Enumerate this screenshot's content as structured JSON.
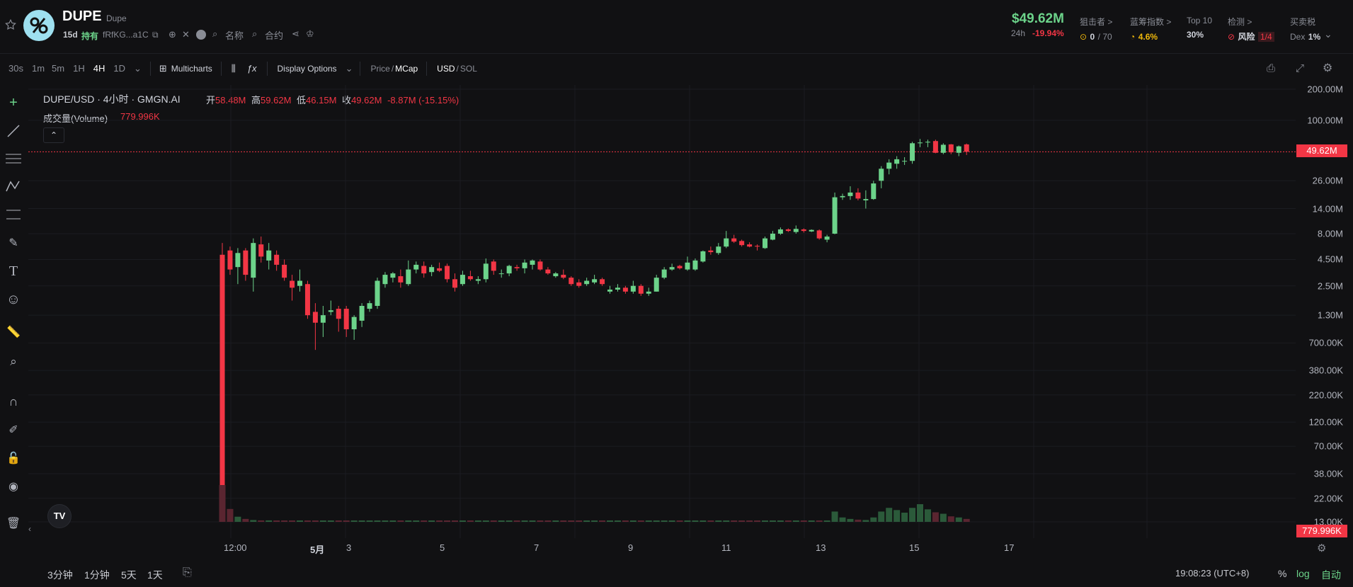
{
  "token": {
    "symbol": "DUPE",
    "name": "Dupe",
    "age": "15d",
    "holding_label": "持有",
    "address": "fRfKG...a1C",
    "search_name": "名称",
    "search_contract": "合约"
  },
  "price": {
    "value": "$49.62M",
    "change_label": "24h",
    "change": "-19.94%"
  },
  "stats": [
    {
      "label": "狙击者 >",
      "value": "0",
      "value2": "/ 70"
    },
    {
      "label": "蓝筹指数 >",
      "value": "4.6%"
    },
    {
      "label": "Top 10",
      "value": "30%"
    },
    {
      "label": "检测 >",
      "value": "风险",
      "value2": "1/4"
    },
    {
      "label": "买卖税",
      "value": "Dex",
      "value2": "1%"
    }
  ],
  "toolbar": {
    "intervals": [
      "30s",
      "1m",
      "5m",
      "1H",
      "4H",
      "1D"
    ],
    "active_interval": "4H",
    "multicharts": "Multicharts",
    "display_options": "Display Options",
    "price_label": "Price",
    "mcap_label": "MCap",
    "usd_label": "USD",
    "sol_label": "SOL"
  },
  "legend": {
    "title": "DUPE/USD · 4小时 · GMGN.AI",
    "open_label": "开",
    "open": "58.48M",
    "high_label": "高",
    "high": "59.62M",
    "low_label": "低",
    "low": "46.15M",
    "close_label": "收",
    "close": "49.62M",
    "change": "-8.87M (-15.15%)",
    "volume_label": "成交量(Volume)",
    "volume": "779.996K"
  },
  "yaxis": [
    "200.00M",
    "100.00M",
    "26.00M",
    "14.00M",
    "8.00M",
    "4.50M",
    "2.50M",
    "1.30M",
    "700.00K",
    "380.00K",
    "220.00K",
    "120.00K",
    "70.00K",
    "38.00K",
    "22.00K",
    "13.00K"
  ],
  "last_price_tag": "49.62M",
  "last_volume_tag": "779.996K",
  "xaxis": [
    "12:00",
    "5月",
    "3",
    "5",
    "7",
    "9",
    "11",
    "13",
    "15",
    "17"
  ],
  "bottom": {
    "ranges": [
      "3分钟",
      "1分钟",
      "5天",
      "1天"
    ],
    "time": "19:08:23 (UTC+8)",
    "pct": "%",
    "log": "log",
    "auto": "自动"
  },
  "colors": {
    "up": "#6cd38a",
    "down": "#f23645",
    "bg": "#111113"
  },
  "chart_data": {
    "type": "candlestick",
    "scale": "log",
    "ylim": [
      "13.00K",
      "200.00M"
    ],
    "candles": [
      {
        "o": 5.0,
        "h": 6.5,
        "l": 0.015,
        "c": 0.016
      },
      {
        "o": 5.5,
        "h": 6.0,
        "l": 3.2,
        "c": 3.6
      },
      {
        "o": 3.8,
        "h": 5.8,
        "l": 2.6,
        "c": 5.2
      },
      {
        "o": 5.5,
        "h": 5.8,
        "l": 2.8,
        "c": 3.2
      },
      {
        "o": 3.0,
        "h": 7.2,
        "l": 2.2,
        "c": 6.5
      },
      {
        "o": 6.3,
        "h": 7.5,
        "l": 4.2,
        "c": 4.8
      },
      {
        "o": 4.4,
        "h": 6.5,
        "l": 3.6,
        "c": 5.5
      },
      {
        "o": 5.0,
        "h": 5.5,
        "l": 3.5,
        "c": 4.0
      },
      {
        "o": 4.0,
        "h": 4.5,
        "l": 2.8,
        "c": 3.0
      },
      {
        "o": 2.8,
        "h": 3.2,
        "l": 1.8,
        "c": 2.4
      },
      {
        "o": 2.5,
        "h": 3.6,
        "l": 2.2,
        "c": 2.8
      },
      {
        "o": 2.6,
        "h": 2.8,
        "l": 1.2,
        "c": 1.3
      },
      {
        "o": 1.4,
        "h": 1.7,
        "l": 0.6,
        "c": 1.1
      },
      {
        "o": 1.1,
        "h": 1.6,
        "l": 0.8,
        "c": 1.3
      },
      {
        "o": 1.4,
        "h": 1.8,
        "l": 1.3,
        "c": 1.45
      },
      {
        "o": 1.5,
        "h": 1.6,
        "l": 0.9,
        "c": 1.2
      },
      {
        "o": 1.5,
        "h": 1.6,
        "l": 0.8,
        "c": 0.95
      },
      {
        "o": 0.95,
        "h": 1.3,
        "l": 0.75,
        "c": 1.25
      },
      {
        "o": 1.15,
        "h": 1.7,
        "l": 1.0,
        "c": 1.6
      },
      {
        "o": 1.5,
        "h": 1.8,
        "l": 1.4,
        "c": 1.7
      },
      {
        "o": 1.6,
        "h": 3.0,
        "l": 1.5,
        "c": 2.8
      },
      {
        "o": 2.6,
        "h": 3.4,
        "l": 2.4,
        "c": 3.2
      },
      {
        "o": 3.0,
        "h": 3.4,
        "l": 2.7,
        "c": 3.3
      },
      {
        "o": 3.1,
        "h": 3.6,
        "l": 2.4,
        "c": 2.7
      },
      {
        "o": 2.6,
        "h": 4.4,
        "l": 2.5,
        "c": 3.6
      },
      {
        "o": 3.6,
        "h": 4.3,
        "l": 3.3,
        "c": 4.0
      },
      {
        "o": 3.9,
        "h": 4.3,
        "l": 3.0,
        "c": 3.3
      },
      {
        "o": 3.4,
        "h": 4.0,
        "l": 3.1,
        "c": 3.8
      },
      {
        "o": 3.7,
        "h": 4.2,
        "l": 3.4,
        "c": 3.5
      },
      {
        "o": 3.9,
        "h": 4.1,
        "l": 2.7,
        "c": 2.9
      },
      {
        "o": 2.9,
        "h": 3.3,
        "l": 2.2,
        "c": 2.4
      },
      {
        "o": 2.6,
        "h": 3.5,
        "l": 2.5,
        "c": 3.2
      },
      {
        "o": 3.1,
        "h": 3.5,
        "l": 2.8,
        "c": 2.9
      },
      {
        "o": 2.8,
        "h": 3.1,
        "l": 2.6,
        "c": 2.9
      },
      {
        "o": 2.9,
        "h": 4.6,
        "l": 2.7,
        "c": 4.1
      },
      {
        "o": 4.3,
        "h": 4.5,
        "l": 3.2,
        "c": 3.5
      },
      {
        "o": 3.3,
        "h": 3.6,
        "l": 3.0,
        "c": 3.3
      },
      {
        "o": 3.3,
        "h": 4.0,
        "l": 3.1,
        "c": 3.9
      },
      {
        "o": 3.8,
        "h": 4.0,
        "l": 3.5,
        "c": 3.7
      },
      {
        "o": 3.7,
        "h": 4.5,
        "l": 3.3,
        "c": 4.2
      },
      {
        "o": 4.0,
        "h": 4.5,
        "l": 3.6,
        "c": 4.4
      },
      {
        "o": 4.3,
        "h": 4.5,
        "l": 3.5,
        "c": 3.6
      },
      {
        "o": 3.6,
        "h": 3.8,
        "l": 3.2,
        "c": 3.3
      },
      {
        "o": 3.1,
        "h": 3.4,
        "l": 3.0,
        "c": 3.3
      },
      {
        "o": 3.2,
        "h": 3.6,
        "l": 2.9,
        "c": 3.0
      },
      {
        "o": 3.0,
        "h": 3.1,
        "l": 2.5,
        "c": 2.6
      },
      {
        "o": 2.7,
        "h": 2.9,
        "l": 2.4,
        "c": 2.5
      },
      {
        "o": 2.6,
        "h": 3.0,
        "l": 2.5,
        "c": 2.8
      },
      {
        "o": 2.7,
        "h": 3.2,
        "l": 2.6,
        "c": 2.9
      },
      {
        "o": 2.9,
        "h": 3.0,
        "l": 2.5,
        "c": 2.6
      },
      {
        "o": 2.2,
        "h": 2.5,
        "l": 2.1,
        "c": 2.3
      },
      {
        "o": 2.3,
        "h": 2.6,
        "l": 2.2,
        "c": 2.4
      },
      {
        "o": 2.4,
        "h": 2.5,
        "l": 2.1,
        "c": 2.2
      },
      {
        "o": 2.2,
        "h": 2.8,
        "l": 2.1,
        "c": 2.5
      },
      {
        "o": 2.5,
        "h": 2.6,
        "l": 2.0,
        "c": 2.1
      },
      {
        "o": 2.1,
        "h": 2.4,
        "l": 2.0,
        "c": 2.2
      },
      {
        "o": 2.2,
        "h": 3.2,
        "l": 2.2,
        "c": 3.0
      },
      {
        "o": 3.0,
        "h": 3.8,
        "l": 2.9,
        "c": 3.6
      },
      {
        "o": 3.6,
        "h": 4.1,
        "l": 3.5,
        "c": 3.8
      },
      {
        "o": 3.9,
        "h": 4.0,
        "l": 3.6,
        "c": 3.7
      },
      {
        "o": 3.6,
        "h": 4.8,
        "l": 3.5,
        "c": 4.2
      },
      {
        "o": 3.6,
        "h": 4.6,
        "l": 3.5,
        "c": 4.4
      },
      {
        "o": 4.3,
        "h": 5.5,
        "l": 4.2,
        "c": 5.4
      },
      {
        "o": 5.5,
        "h": 6.0,
        "l": 5.0,
        "c": 5.3
      },
      {
        "o": 5.2,
        "h": 6.5,
        "l": 5.0,
        "c": 6.0
      },
      {
        "o": 6.0,
        "h": 8.5,
        "l": 5.8,
        "c": 7.2
      },
      {
        "o": 7.2,
        "h": 7.8,
        "l": 6.5,
        "c": 6.7
      },
      {
        "o": 6.8,
        "h": 7.0,
        "l": 6.0,
        "c": 6.2
      },
      {
        "o": 6.3,
        "h": 6.6,
        "l": 5.9,
        "c": 6.0
      },
      {
        "o": 6.1,
        "h": 6.3,
        "l": 5.5,
        "c": 6.0
      },
      {
        "o": 5.8,
        "h": 7.5,
        "l": 5.7,
        "c": 7.2
      },
      {
        "o": 7.0,
        "h": 8.5,
        "l": 6.9,
        "c": 8.0
      },
      {
        "o": 8.0,
        "h": 9.2,
        "l": 7.8,
        "c": 8.8
      },
      {
        "o": 8.8,
        "h": 9.0,
        "l": 8.3,
        "c": 8.5
      },
      {
        "o": 8.3,
        "h": 9.6,
        "l": 8.0,
        "c": 8.9
      },
      {
        "o": 8.8,
        "h": 9.0,
        "l": 8.2,
        "c": 8.5
      },
      {
        "o": 8.4,
        "h": 8.8,
        "l": 8.3,
        "c": 8.7
      },
      {
        "o": 8.6,
        "h": 8.8,
        "l": 7.0,
        "c": 7.2
      },
      {
        "o": 7.0,
        "h": 7.8,
        "l": 6.6,
        "c": 7.5
      },
      {
        "o": 8.0,
        "h": 20.0,
        "l": 7.9,
        "c": 18.0
      },
      {
        "o": 18.0,
        "h": 19.5,
        "l": 17.0,
        "c": 18.5
      },
      {
        "o": 18.5,
        "h": 23.0,
        "l": 17.0,
        "c": 20.0
      },
      {
        "o": 20.0,
        "h": 22.0,
        "l": 16.8,
        "c": 17.5
      },
      {
        "o": 16.8,
        "h": 21.0,
        "l": 14.0,
        "c": 17.3
      },
      {
        "o": 17.3,
        "h": 26.0,
        "l": 17.0,
        "c": 24.5
      },
      {
        "o": 26.0,
        "h": 36.0,
        "l": 22.0,
        "c": 34.0
      },
      {
        "o": 34.0,
        "h": 42.0,
        "l": 30.0,
        "c": 39.0
      },
      {
        "o": 38.0,
        "h": 45.0,
        "l": 34.0,
        "c": 42.0
      },
      {
        "o": 40.0,
        "h": 44.0,
        "l": 37.0,
        "c": 40.5
      },
      {
        "o": 40.5,
        "h": 62.0,
        "l": 38.0,
        "c": 60.0
      },
      {
        "o": 60.0,
        "h": 66.0,
        "l": 55.0,
        "c": 61.0
      },
      {
        "o": 61.0,
        "h": 65.0,
        "l": 55.0,
        "c": 62.0
      },
      {
        "o": 63.0,
        "h": 65.0,
        "l": 48.0,
        "c": 48.5
      },
      {
        "o": 48.5,
        "h": 60.0,
        "l": 47.0,
        "c": 58.0
      },
      {
        "o": 58.5,
        "h": 59.0,
        "l": 47.0,
        "c": 49.0
      },
      {
        "o": 48.5,
        "h": 57.0,
        "l": 45.0,
        "c": 56.0
      },
      {
        "o": 58.48,
        "h": 59.62,
        "l": 46.15,
        "c": 49.62
      }
    ],
    "volume_note": "volume bars shown beneath candles"
  }
}
